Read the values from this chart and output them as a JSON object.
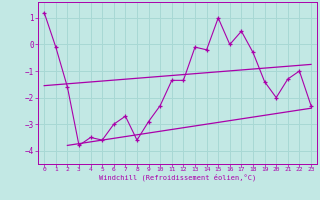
{
  "xlabel": "Windchill (Refroidissement éolien,°C)",
  "background_color": "#c2e8e4",
  "grid_color": "#a8d8d4",
  "line_color": "#aa00aa",
  "x": [
    0,
    1,
    2,
    3,
    4,
    5,
    6,
    7,
    8,
    9,
    10,
    11,
    12,
    13,
    14,
    15,
    16,
    17,
    18,
    19,
    20,
    21,
    22,
    23
  ],
  "line_main": [
    1.2,
    -0.1,
    -1.6,
    -3.8,
    -3.5,
    -3.6,
    -3.0,
    -2.7,
    -3.6,
    -2.9,
    -2.3,
    -1.35,
    -1.35,
    -0.1,
    -0.2,
    1.0,
    0.0,
    0.5,
    -0.3,
    -1.4,
    -2.0,
    -1.3,
    -1.0,
    -2.3
  ],
  "trend1_x": [
    0,
    23
  ],
  "trend1_y": [
    -1.55,
    -0.75
  ],
  "trend2_x": [
    2,
    23
  ],
  "trend2_y": [
    -3.8,
    -2.4
  ],
  "ylim": [
    -4.5,
    1.6
  ],
  "xlim": [
    -0.5,
    23.5
  ],
  "yticks": [
    1,
    0,
    -1,
    -2,
    -3,
    -4
  ],
  "xticks": [
    0,
    1,
    2,
    3,
    4,
    5,
    6,
    7,
    8,
    9,
    10,
    11,
    12,
    13,
    14,
    15,
    16,
    17,
    18,
    19,
    20,
    21,
    22,
    23
  ]
}
